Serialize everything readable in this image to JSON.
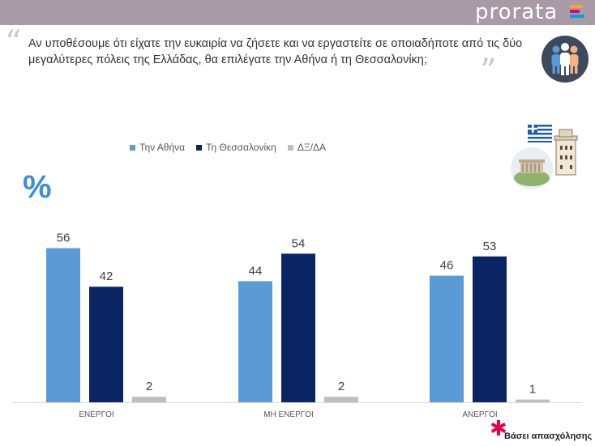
{
  "header": {
    "brand": "prorata"
  },
  "question": {
    "text": "Αν υποθέσουμε ότι είχατε την ευκαιρία να ζήσετε και να εργαστείτε σε οποιαδήποτε από τις δύο μεγαλύτερες πόλεις της Ελλάδας, θα επιλέγατε την Αθήνα ή τη Θεσσαλονίκη;"
  },
  "unit_label": "%",
  "note": {
    "text": "Βάσει απασχόλησης"
  },
  "colors": {
    "athens": "#5b9bd5",
    "thessaloniki": "#0b2463",
    "dk": "#bfbfbf",
    "topbar": "#a99aa8",
    "percent": "#3a8fd6"
  },
  "chart_data": {
    "type": "bar",
    "categories": [
      "ΕΝΕΡΓΟΙ",
      "ΜΗ ΕΝΕΡΓΟΙ",
      "ΑΝΕΡΓΟΙ"
    ],
    "series": [
      {
        "name": "Την Αθήνα",
        "values": [
          56,
          44,
          46
        ],
        "color": "#5b9bd5"
      },
      {
        "name": "Τη Θεσσαλονίκη",
        "values": [
          42,
          54,
          53
        ],
        "color": "#0b2463"
      },
      {
        "name": "ΔΞ/ΔΑ",
        "values": [
          2,
          2,
          1
        ],
        "color": "#bfbfbf"
      }
    ],
    "ylim": [
      0,
      60
    ],
    "legend_position": "top",
    "grid": false,
    "data_labels": true
  }
}
